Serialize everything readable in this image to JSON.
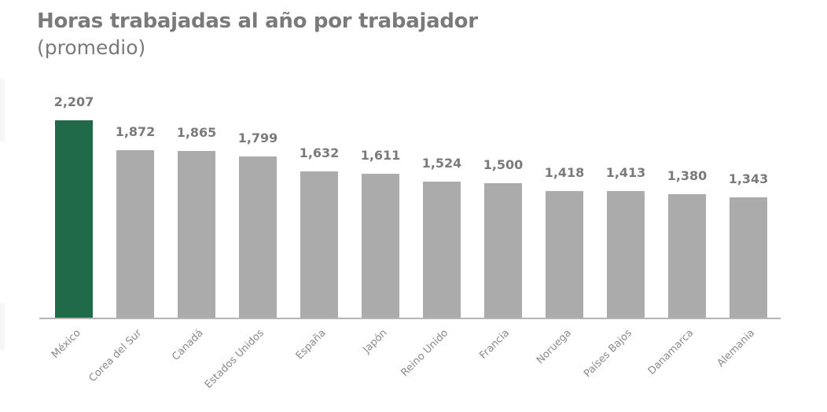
{
  "header": {
    "title": "Horas trabajadas al año por trabajador",
    "subtitle": "(promedio)"
  },
  "colors": {
    "highlight": "#206a49",
    "bar": "#ababab",
    "text": "#7a7a7a",
    "axis": "#b5b5b5"
  },
  "chart_data": {
    "type": "bar",
    "title": "Horas trabajadas al año por trabajador",
    "subtitle": "(promedio)",
    "xlabel": "",
    "ylabel": "",
    "categories": [
      "México",
      "Corea del Sur",
      "Canadá",
      "Estados Unidos",
      "España",
      "Japón",
      "Reino Unido",
      "Francia",
      "Noruega",
      "Países Bajos",
      "Danamarca",
      "Alemania"
    ],
    "values": [
      2207,
      1872,
      1865,
      1799,
      1632,
      1611,
      1524,
      1500,
      1418,
      1413,
      1380,
      1343
    ],
    "value_labels": [
      "2,207",
      "1,872",
      "1,865",
      "1,799",
      "1,632",
      "1,611",
      "1,524",
      "1,500",
      "1,418",
      "1,413",
      "1,380",
      "1,343"
    ],
    "highlighted_index": 0,
    "ylim": [
      0,
      2207
    ],
    "grid": false,
    "legend": null
  }
}
